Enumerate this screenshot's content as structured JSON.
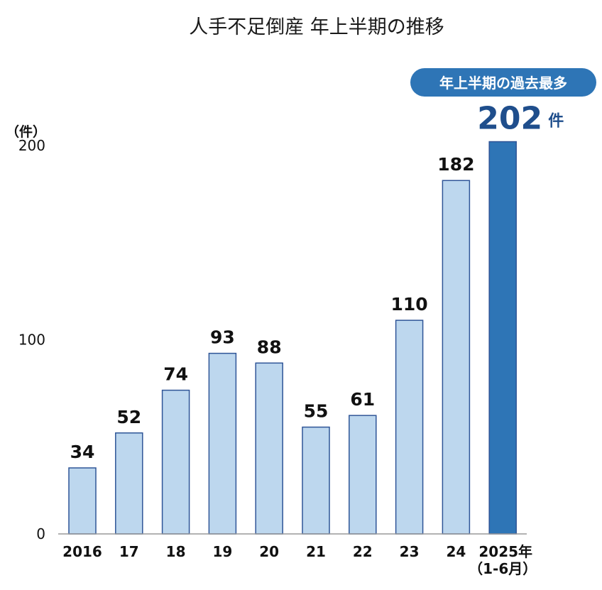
{
  "chart_data": {
    "type": "bar",
    "title": "人手不足倒産 年上半期の推移",
    "unit_label": "（件）",
    "categories": [
      "2016",
      "17",
      "18",
      "19",
      "20",
      "21",
      "22",
      "23",
      "24",
      "2025年"
    ],
    "category_sublabels": [
      "",
      "",
      "",
      "",
      "",
      "",
      "",
      "",
      "",
      "（1-6月）"
    ],
    "values": [
      34,
      52,
      74,
      93,
      88,
      55,
      61,
      110,
      182,
      202
    ],
    "value_labels": [
      "34",
      "52",
      "74",
      "93",
      "88",
      "55",
      "61",
      "110",
      "182",
      "202"
    ],
    "highlight_unit": "件",
    "ylim": [
      0,
      200
    ],
    "yticks": [
      0,
      100,
      200
    ],
    "annotation": "年上半期の過去最多",
    "grid": false,
    "highlight_index": 9,
    "colors": {
      "bar": "#bdd7ee",
      "bar_border": "#2f5597",
      "highlight_bar": "#2e75b6",
      "badge": "#2e75b6",
      "highlight_text": "#1f4e8c"
    }
  }
}
